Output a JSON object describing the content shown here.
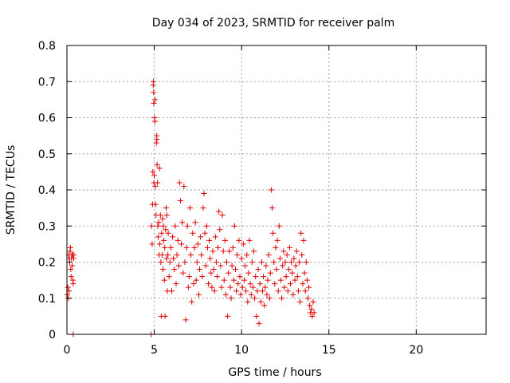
{
  "chart_data": {
    "type": "scatter",
    "title": "Day 034 of 2023, SRMTID for receiver palm",
    "xlabel": "GPS time / hours",
    "ylabel": "SRMTID / TECUs",
    "xlim": [
      0,
      24
    ],
    "ylim": [
      0,
      0.8
    ],
    "xticks": [
      0,
      5,
      10,
      15,
      20
    ],
    "xtick_labels": [
      "0",
      "5",
      "10",
      "15",
      "20"
    ],
    "yticks": [
      0,
      0.1,
      0.2,
      0.3,
      0.4,
      0.5,
      0.6,
      0.7,
      0.8
    ],
    "ytick_labels": [
      "0",
      "0.1",
      "0.2",
      "0.3",
      "0.4",
      "0.5",
      "0.6",
      "0.7",
      "0.8"
    ],
    "grid": true,
    "marker": "+",
    "color": "#e00000",
    "series": [
      {
        "name": "SRMTID",
        "points": [
          [
            0.02,
            0.11
          ],
          [
            0.05,
            0.13
          ],
          [
            0.08,
            0.1
          ],
          [
            0.1,
            0.22
          ],
          [
            0.12,
            0.12
          ],
          [
            0.14,
            0.21
          ],
          [
            0.16,
            0.2
          ],
          [
            0.18,
            0.23
          ],
          [
            0.2,
            0.24
          ],
          [
            0.22,
            0.18
          ],
          [
            0.24,
            0.16
          ],
          [
            0.26,
            0.21
          ],
          [
            0.28,
            0.22
          ],
          [
            0.3,
            0.19
          ],
          [
            0.32,
            0.22
          ],
          [
            0.34,
            0.15
          ],
          [
            0.36,
            0.14
          ],
          [
            0.38,
            0.21
          ],
          [
            0.4,
            0.22
          ],
          [
            0.36,
            0.0
          ],
          [
            4.82,
            0.0
          ],
          [
            4.85,
            0.3
          ],
          [
            4.88,
            0.25
          ],
          [
            4.9,
            0.36
          ],
          [
            4.92,
            0.45
          ],
          [
            4.94,
            0.69
          ],
          [
            4.95,
            0.7
          ],
          [
            4.96,
            0.67
          ],
          [
            4.97,
            0.64
          ],
          [
            4.98,
            0.42
          ],
          [
            5.0,
            0.44
          ],
          [
            5.02,
            0.6
          ],
          [
            5.04,
            0.59
          ],
          [
            5.05,
            0.65
          ],
          [
            5.06,
            0.41
          ],
          [
            5.08,
            0.36
          ],
          [
            5.1,
            0.33
          ],
          [
            5.12,
            0.53
          ],
          [
            5.14,
            0.55
          ],
          [
            5.15,
            0.54
          ],
          [
            5.16,
            0.47
          ],
          [
            5.18,
            0.42
          ],
          [
            5.2,
            0.3
          ],
          [
            5.22,
            0.27
          ],
          [
            5.25,
            0.31
          ],
          [
            5.28,
            0.22
          ],
          [
            5.3,
            0.46
          ],
          [
            5.32,
            0.25
          ],
          [
            5.35,
            0.33
          ],
          [
            5.38,
            0.2
          ],
          [
            5.4,
            0.05
          ],
          [
            5.42,
            0.28
          ],
          [
            5.45,
            0.22
          ],
          [
            5.48,
            0.32
          ],
          [
            5.5,
            0.18
          ],
          [
            5.52,
            0.3
          ],
          [
            5.55,
            0.26
          ],
          [
            5.58,
            0.15
          ],
          [
            5.6,
            0.24
          ],
          [
            5.62,
            0.05
          ],
          [
            5.65,
            0.29
          ],
          [
            5.68,
            0.35
          ],
          [
            5.7,
            0.21
          ],
          [
            5.72,
            0.33
          ],
          [
            5.75,
            0.12
          ],
          [
            5.78,
            0.22
          ],
          [
            5.8,
            0.28
          ],
          [
            5.85,
            0.16
          ],
          [
            5.9,
            0.2
          ],
          [
            5.95,
            0.24
          ],
          [
            6.0,
            0.12
          ],
          [
            6.05,
            0.27
          ],
          [
            6.1,
            0.21
          ],
          [
            6.15,
            0.18
          ],
          [
            6.2,
            0.3
          ],
          [
            6.25,
            0.14
          ],
          [
            6.3,
            0.22
          ],
          [
            6.35,
            0.26
          ],
          [
            6.4,
            0.19
          ],
          [
            6.45,
            0.42
          ],
          [
            6.5,
            0.37
          ],
          [
            6.55,
            0.25
          ],
          [
            6.6,
            0.31
          ],
          [
            6.65,
            0.17
          ],
          [
            6.7,
            0.41
          ],
          [
            6.75,
            0.2
          ],
          [
            6.8,
            0.04
          ],
          [
            6.85,
            0.24
          ],
          [
            6.9,
            0.3
          ],
          [
            6.95,
            0.13
          ],
          [
            7.0,
            0.16
          ],
          [
            7.05,
            0.35
          ],
          [
            7.1,
            0.22
          ],
          [
            7.15,
            0.09
          ],
          [
            7.2,
            0.28
          ],
          [
            7.25,
            0.14
          ],
          [
            7.3,
            0.24
          ],
          [
            7.35,
            0.31
          ],
          [
            7.4,
            0.15
          ],
          [
            7.45,
            0.2
          ],
          [
            7.5,
            0.25
          ],
          [
            7.55,
            0.11
          ],
          [
            7.6,
            0.18
          ],
          [
            7.65,
            0.27
          ],
          [
            7.7,
            0.22
          ],
          [
            7.75,
            0.16
          ],
          [
            7.8,
            0.35
          ],
          [
            7.85,
            0.39
          ],
          [
            7.9,
            0.28
          ],
          [
            7.95,
            0.19
          ],
          [
            8.0,
            0.3
          ],
          [
            8.05,
            0.24
          ],
          [
            8.1,
            0.14
          ],
          [
            8.15,
            0.26
          ],
          [
            8.2,
            0.21
          ],
          [
            8.25,
            0.17
          ],
          [
            8.3,
            0.13
          ],
          [
            8.35,
            0.23
          ],
          [
            8.4,
            0.18
          ],
          [
            8.45,
            0.12
          ],
          [
            8.5,
            0.27
          ],
          [
            8.55,
            0.2
          ],
          [
            8.6,
            0.16
          ],
          [
            8.65,
            0.24
          ],
          [
            8.7,
            0.34
          ],
          [
            8.75,
            0.29
          ],
          [
            8.8,
            0.19
          ],
          [
            8.85,
            0.13
          ],
          [
            8.9,
            0.33
          ],
          [
            8.95,
            0.23
          ],
          [
            9.0,
            0.15
          ],
          [
            9.05,
            0.26
          ],
          [
            9.1,
            0.11
          ],
          [
            9.15,
            0.2
          ],
          [
            9.2,
            0.05
          ],
          [
            9.25,
            0.17
          ],
          [
            9.3,
            0.23
          ],
          [
            9.35,
            0.13
          ],
          [
            9.4,
            0.1
          ],
          [
            9.45,
            0.19
          ],
          [
            9.5,
            0.24
          ],
          [
            9.55,
            0.15
          ],
          [
            9.6,
            0.3
          ],
          [
            9.65,
            0.18
          ],
          [
            9.7,
            0.12
          ],
          [
            9.75,
            0.22
          ],
          [
            9.8,
            0.14
          ],
          [
            9.85,
            0.26
          ],
          [
            9.9,
            0.16
          ],
          [
            9.95,
            0.11
          ],
          [
            10.0,
            0.21
          ],
          [
            10.05,
            0.13
          ],
          [
            10.1,
            0.25
          ],
          [
            10.15,
            0.15
          ],
          [
            10.2,
            0.19
          ],
          [
            10.25,
            0.12
          ],
          [
            10.3,
            0.22
          ],
          [
            10.35,
            0.09
          ],
          [
            10.4,
            0.17
          ],
          [
            10.45,
            0.26
          ],
          [
            10.5,
            0.14
          ],
          [
            10.55,
            0.11
          ],
          [
            10.6,
            0.2
          ],
          [
            10.65,
            0.13
          ],
          [
            10.7,
            0.23
          ],
          [
            10.75,
            0.1
          ],
          [
            10.8,
            0.16
          ],
          [
            10.85,
            0.05
          ],
          [
            10.9,
            0.12
          ],
          [
            10.95,
            0.18
          ],
          [
            11.0,
            0.03
          ],
          [
            11.05,
            0.14
          ],
          [
            11.1,
            0.09
          ],
          [
            11.15,
            0.2
          ],
          [
            11.2,
            0.12
          ],
          [
            11.25,
            0.16
          ],
          [
            11.3,
            0.08
          ],
          [
            11.35,
            0.13
          ],
          [
            11.4,
            0.19
          ],
          [
            11.45,
            0.11
          ],
          [
            11.5,
            0.15
          ],
          [
            11.55,
            0.22
          ],
          [
            11.6,
            0.1
          ],
          [
            11.65,
            0.17
          ],
          [
            11.7,
            0.4
          ],
          [
            11.75,
            0.35
          ],
          [
            11.8,
            0.28
          ],
          [
            11.85,
            0.2
          ],
          [
            11.9,
            0.14
          ],
          [
            11.95,
            0.24
          ],
          [
            12.0,
            0.18
          ],
          [
            12.05,
            0.26
          ],
          [
            12.1,
            0.12
          ],
          [
            12.15,
            0.3
          ],
          [
            12.2,
            0.21
          ],
          [
            12.25,
            0.15
          ],
          [
            12.3,
            0.1
          ],
          [
            12.35,
            0.19
          ],
          [
            12.4,
            0.23
          ],
          [
            12.45,
            0.13
          ],
          [
            12.5,
            0.2
          ],
          [
            12.55,
            0.16
          ],
          [
            12.6,
            0.22
          ],
          [
            12.65,
            0.12
          ],
          [
            12.7,
            0.18
          ],
          [
            12.75,
            0.24
          ],
          [
            12.8,
            0.14
          ],
          [
            12.85,
            0.2
          ],
          [
            12.9,
            0.17
          ],
          [
            12.95,
            0.11
          ],
          [
            13.0,
            0.21
          ],
          [
            13.05,
            0.15
          ],
          [
            13.1,
            0.19
          ],
          [
            13.15,
            0.23
          ],
          [
            13.2,
            0.16
          ],
          [
            13.25,
            0.12
          ],
          [
            13.3,
            0.2
          ],
          [
            13.35,
            0.09
          ],
          [
            13.4,
            0.28
          ],
          [
            13.45,
            0.22
          ],
          [
            13.5,
            0.14
          ],
          [
            13.55,
            0.26
          ],
          [
            13.6,
            0.17
          ],
          [
            13.65,
            0.12
          ],
          [
            13.7,
            0.2
          ],
          [
            13.75,
            0.15
          ],
          [
            13.8,
            0.1
          ],
          [
            13.85,
            0.13
          ],
          [
            13.9,
            0.08
          ],
          [
            13.95,
            0.06
          ],
          [
            14.0,
            0.07
          ],
          [
            14.05,
            0.05
          ],
          [
            14.1,
            0.09
          ],
          [
            14.15,
            0.06
          ]
        ]
      }
    ]
  }
}
